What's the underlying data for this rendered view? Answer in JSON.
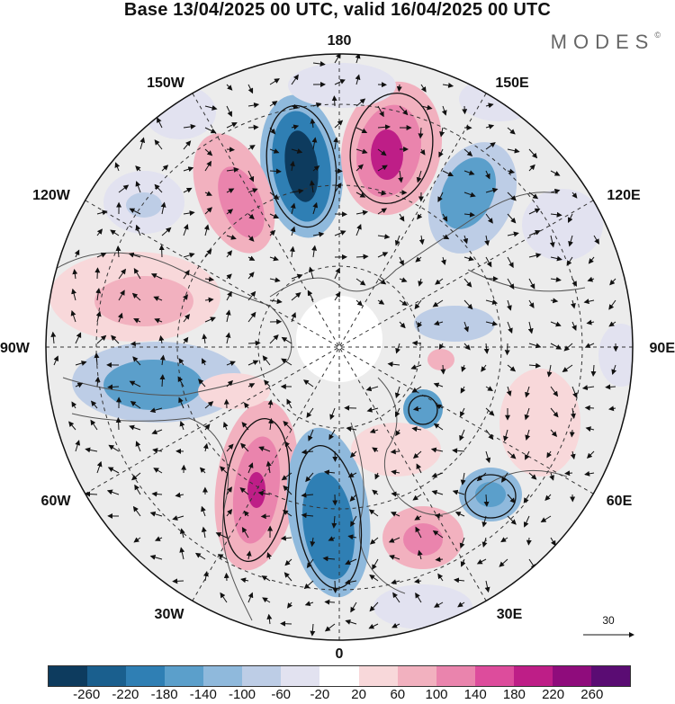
{
  "title": "Base 13/04/2025 00 UTC, valid 16/04/2025 00 UTC",
  "brand": {
    "name": "MODES",
    "mark": "©"
  },
  "map": {
    "projection": "north polar stereographic",
    "longitude_labels": {
      "top": "180",
      "bottom": "0",
      "left": "90W",
      "right": "90E",
      "upper_left": "150W",
      "upper_right": "150E",
      "left_upper": "120W",
      "right_upper": "120E",
      "left_lower": "60W",
      "right_lower": "60E",
      "lower_left": "30W",
      "lower_right": "30E"
    },
    "colors": {
      "background": "#ececec",
      "coast": "#555555",
      "grid": "#333333"
    }
  },
  "vector_scale": {
    "value": "30"
  },
  "colorbar": {
    "colors": [
      "#0d3b5e",
      "#1a5f8e",
      "#2f7fb4",
      "#5b9fcb",
      "#8fb9dc",
      "#bdcde6",
      "#e2e2f0",
      "#ffffff",
      "#f8d8da",
      "#f2b1bf",
      "#ea84ad",
      "#dd4c9c",
      "#be1e87",
      "#8f0c7c",
      "#5a0c73"
    ],
    "tick_labels": [
      "-260",
      "-220",
      "-180",
      "-140",
      "-100",
      "-60",
      "-20",
      "20",
      "60",
      "100",
      "140",
      "180",
      "220",
      "260"
    ]
  }
}
